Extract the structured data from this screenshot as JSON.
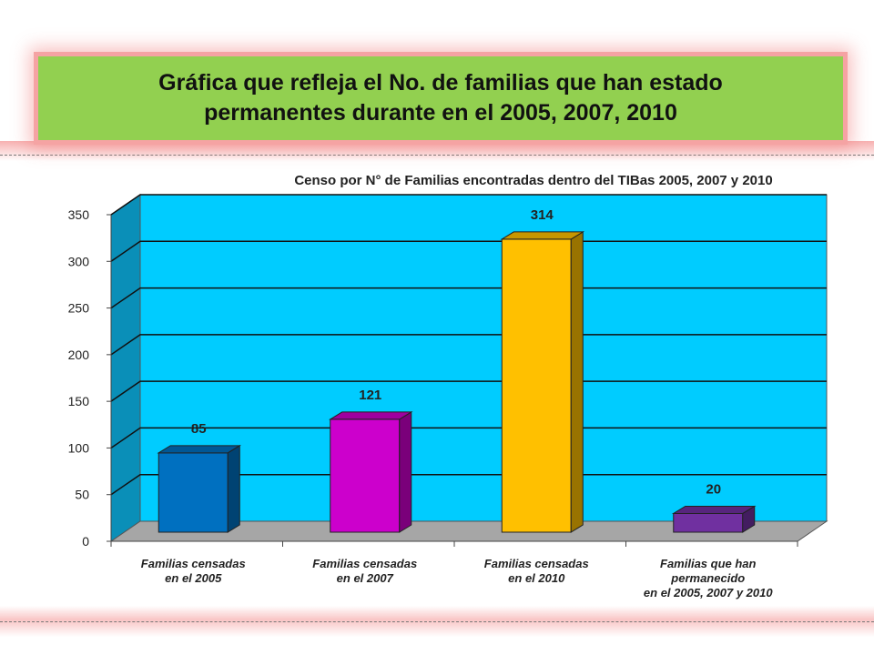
{
  "slide_title": "Gráfica que refleja el No. de familias que han estado\npermanentes durante en el 2005, 2007, 2010",
  "chart_data": {
    "type": "bar",
    "title": "Censo por N° de Familias encontradas dentro del TIBas 2005, 2007 y 2010",
    "categories": [
      [
        "Familias censadas",
        "en el 2005"
      ],
      [
        "Familias censadas",
        "en el 2007"
      ],
      [
        "Familias censadas",
        "en el 2010"
      ],
      [
        "Familias que han",
        "permanecido",
        "en el 2005, 2007 y 2010"
      ]
    ],
    "values": [
      85,
      121,
      314,
      20
    ],
    "data_labels": [
      "85",
      "121",
      "314",
      "20"
    ],
    "colors": [
      "#0070c0",
      "#cc00cc",
      "#ffc000",
      "#7030a0"
    ],
    "yticks": [
      "0",
      "50",
      "100",
      "150",
      "200",
      "250",
      "300",
      "350"
    ],
    "ylim": [
      0,
      350
    ],
    "grid": true,
    "background_color": "#00ccff",
    "floor_color": "#a6a6a6"
  }
}
